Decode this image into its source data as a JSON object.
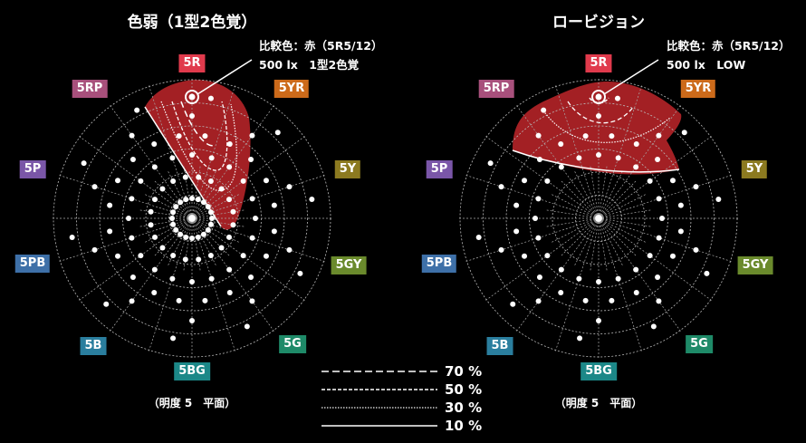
{
  "left": {
    "title": "色弱（1型2色覚）",
    "note_line1": "比較色：赤（5R5/12）",
    "note_line2": "500 lx　1型2色覚",
    "footer": "（明度 5　平面）"
  },
  "right": {
    "title": "ロービジョン",
    "note_line1": "比較色：赤（5R5/12）",
    "note_line2": "500 lx　LOW",
    "footer": "（明度 5　平面）"
  },
  "hues": [
    {
      "label": "5R",
      "color": "#e03a4c"
    },
    {
      "label": "5YR",
      "color": "#cc6a1a"
    },
    {
      "label": "5Y",
      "color": "#8c7a20"
    },
    {
      "label": "5GY",
      "color": "#6a8a2c"
    },
    {
      "label": "5G",
      "color": "#1e8a68"
    },
    {
      "label": "5BG",
      "color": "#1c8888"
    },
    {
      "label": "5B",
      "color": "#2a7e9e"
    },
    {
      "label": "5PB",
      "color": "#3e70a8"
    },
    {
      "label": "5P",
      "color": "#7a56a8"
    },
    {
      "label": "5RP",
      "color": "#a8507c"
    }
  ],
  "legend": [
    {
      "label": "70 %",
      "style": "long-dash"
    },
    {
      "label": "50 %",
      "style": "short-dash"
    },
    {
      "label": "30 %",
      "style": "dotted"
    },
    {
      "label": "10 %",
      "style": "solid"
    }
  ],
  "region_color": "#a32024"
}
